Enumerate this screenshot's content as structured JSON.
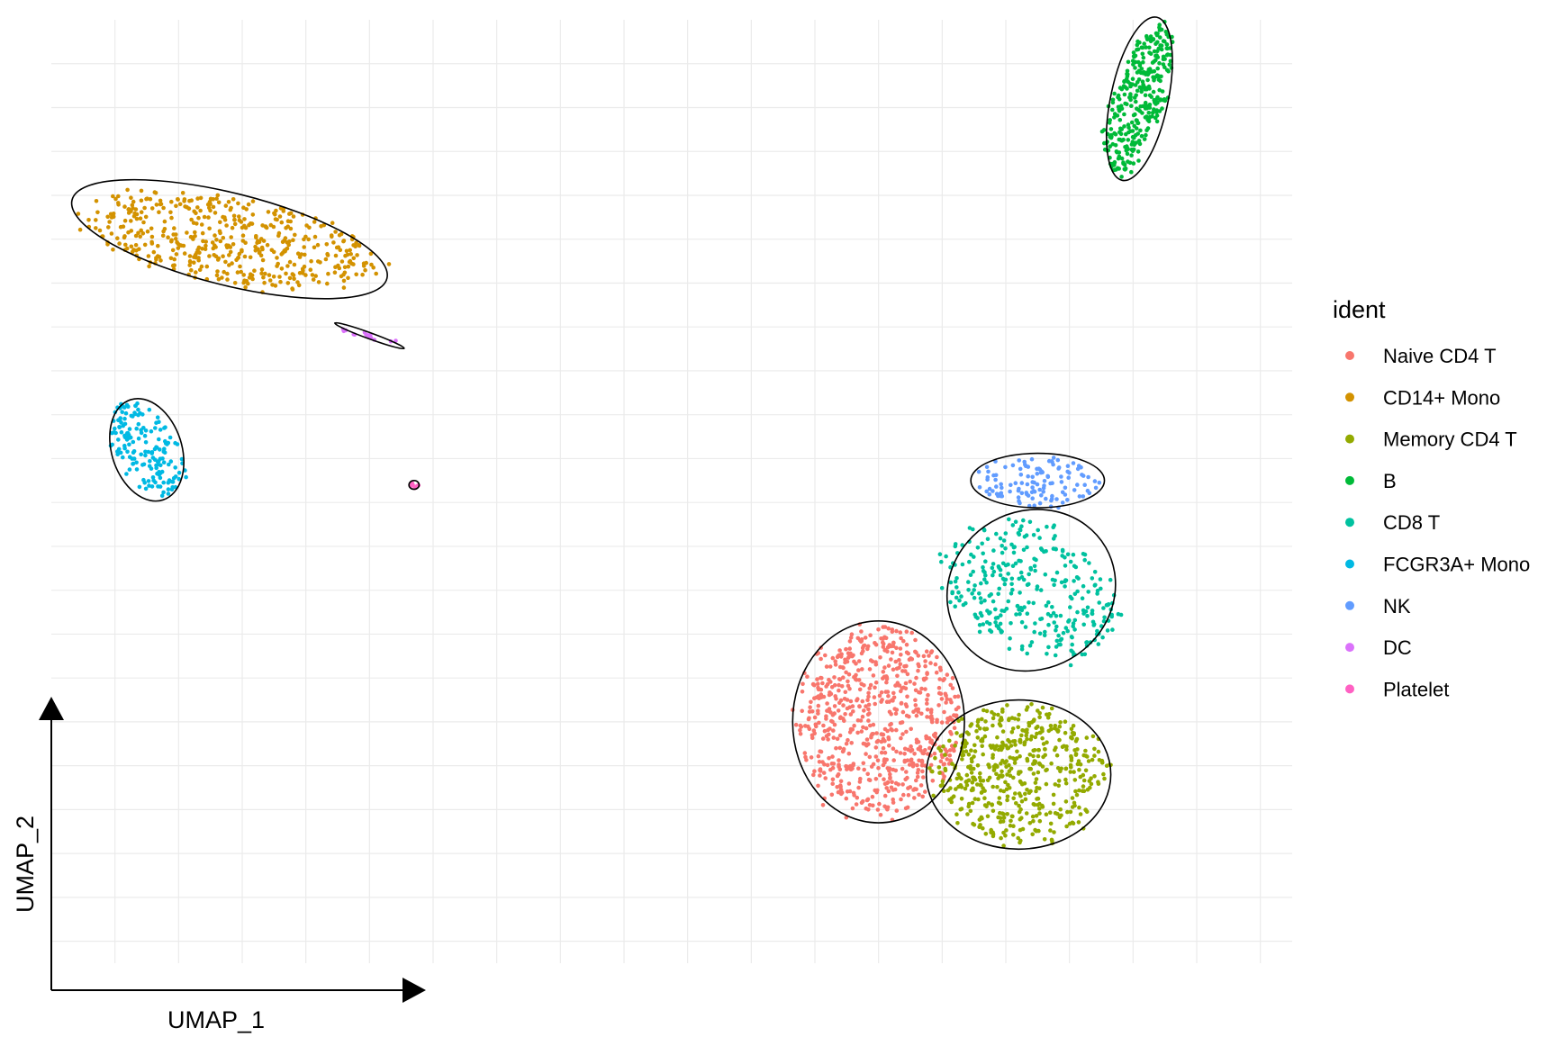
{
  "chart_data": {
    "type": "scatter",
    "title": "",
    "xlabel": "UMAP_1",
    "ylabel": "UMAP_2",
    "xlim": [
      -11,
      8.5
    ],
    "ylim": [
      -14.5,
      7
    ],
    "grid": true,
    "legend": {
      "title": "ident",
      "placement": "right"
    },
    "series": [
      {
        "name": "Naive CD4 T",
        "color": "#F8766D",
        "cx": 2.0,
        "cy": -9.0,
        "rx": 1.35,
        "ry": 2.3,
        "n": 700,
        "ellipse": true
      },
      {
        "name": "CD14+ Mono",
        "color": "#D39200",
        "cx": -8.2,
        "cy": 2.0,
        "rx": 2.55,
        "ry": 1.05,
        "rot": -14,
        "n": 480,
        "ellipse": true
      },
      {
        "name": "Memory CD4 T",
        "color": "#93AA00",
        "cx": 4.2,
        "cy": -10.2,
        "rx": 1.45,
        "ry": 1.7,
        "n": 520,
        "ellipse": true
      },
      {
        "name": "B",
        "color": "#00BA38",
        "cx": 6.1,
        "cy": 5.2,
        "rx": 0.45,
        "ry": 1.9,
        "rot": -12,
        "n": 340,
        "ellipse": true
      },
      {
        "name": "CD8 T",
        "color": "#00C19F",
        "cx": 4.4,
        "cy": -6.0,
        "rx": 1.35,
        "ry": 1.8,
        "rot": 30,
        "n": 330,
        "ellipse": true
      },
      {
        "name": "FCGR3A+ Mono",
        "color": "#00B9E3",
        "cx": -9.5,
        "cy": -2.8,
        "rx": 0.55,
        "ry": 1.2,
        "rot": 18,
        "n": 170,
        "ellipse": true
      },
      {
        "name": "NK",
        "color": "#619CFF",
        "cx": 4.5,
        "cy": -3.5,
        "rx": 1.05,
        "ry": 0.62,
        "n": 120,
        "ellipse": true
      },
      {
        "name": "DC",
        "color": "#DB72FB",
        "cx": -6.0,
        "cy": -0.2,
        "rx": 0.58,
        "ry": 0.07,
        "rot": -20,
        "n": 14,
        "ellipse": true
      },
      {
        "name": "Platelet",
        "color": "#FF61C3",
        "cx": -5.3,
        "cy": -3.6,
        "rx": 0.08,
        "ry": 0.1,
        "n": 8,
        "ellipse": true
      }
    ]
  }
}
